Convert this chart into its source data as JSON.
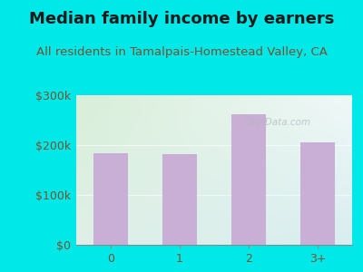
{
  "title": "Median family income by earners",
  "subtitle": "All residents in Tamalpais-Homestead Valley, CA",
  "categories": [
    "0",
    "1",
    "2",
    "3+"
  ],
  "values": [
    183000,
    181000,
    262000,
    205000
  ],
  "bar_color": "#c9aed6",
  "outer_bg_color": "#00e8e8",
  "inner_bg_tl": "#d8efd8",
  "inner_bg_tr": "#e8f4f8",
  "inner_bg_bl": "#e0f0e0",
  "inner_bg_br": "#d0e8ee",
  "title_color": "#1a1a1a",
  "subtitle_color": "#7a5030",
  "tick_color": "#7a5030",
  "ylim": [
    0,
    300000
  ],
  "yticks": [
    0,
    100000,
    200000,
    300000
  ],
  "ytick_labels": [
    "$0",
    "$100k",
    "$200k",
    "$300k"
  ],
  "watermark": "City-Data.com",
  "title_fontsize": 13,
  "subtitle_fontsize": 9.5,
  "tick_fontsize": 9
}
